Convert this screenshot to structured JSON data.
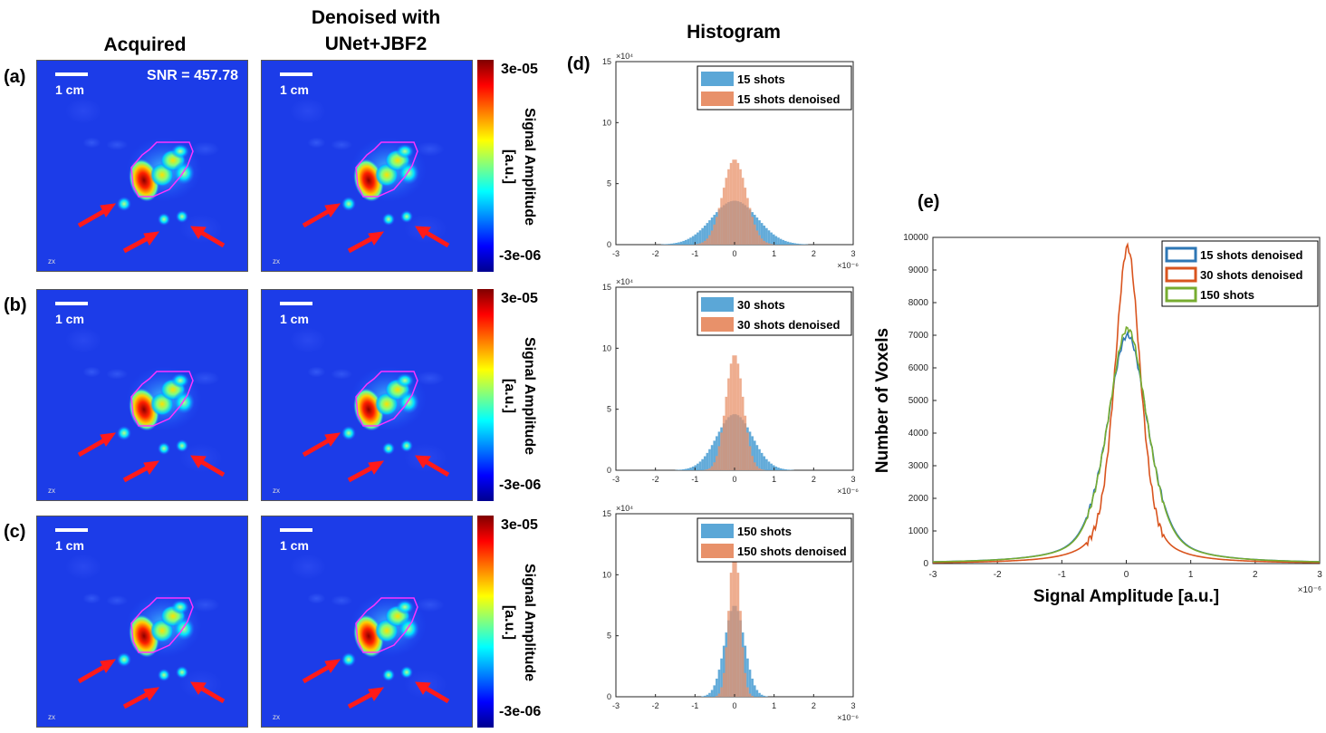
{
  "titles": {
    "acquired": "Acquired",
    "denoised_line1": "Denoised with",
    "denoised_line2": "UNet+JBF2",
    "histogram": "Histogram"
  },
  "panel_labels": {
    "a": "(a)",
    "b": "(b)",
    "c": "(c)",
    "d": "(d)",
    "e": "(e)"
  },
  "image_panels": {
    "scale_bar": "1 cm",
    "snr_text": "SNR = 457.78",
    "view_label": "zx",
    "colorbar": {
      "max_label": "3e-05",
      "min_label": "-3e-06",
      "title_line1": "Signal Amplitude",
      "title_line2": "[a.u.]"
    }
  },
  "colors": {
    "acquired": "#5BA7D7",
    "denoised": "#E8916A",
    "line_15_denoised": "#2E77B5",
    "line_30_denoised": "#D9541E",
    "line_150": "#77AC30",
    "roi_outline": "#ff33ff",
    "arrow": "#ff1a1a"
  },
  "chart_data": [
    {
      "type": "bar",
      "subtype": "histogram",
      "exponent_y": "×10⁴",
      "exponent_x": "×10⁻⁶",
      "x_ticks": [
        "-3",
        "-2",
        "-1",
        "0",
        "1",
        "2",
        "3"
      ],
      "y_ticks": [
        "0",
        "5",
        "10",
        "15"
      ],
      "xlim": [
        -3,
        3
      ],
      "ylim": [
        0,
        15
      ],
      "series": [
        {
          "name": "15 shots",
          "sigma": 0.58,
          "peak": 3.6
        },
        {
          "name": "15 shots denoised",
          "sigma": 0.3,
          "peak": 7.0
        }
      ]
    },
    {
      "type": "bar",
      "subtype": "histogram",
      "exponent_y": "×10⁴",
      "exponent_x": "×10⁻⁶",
      "x_ticks": [
        "-3",
        "-2",
        "-1",
        "0",
        "1",
        "2",
        "3"
      ],
      "y_ticks": [
        "0",
        "5",
        "10",
        "15"
      ],
      "xlim": [
        -3,
        3
      ],
      "ylim": [
        0,
        15
      ],
      "series": [
        {
          "name": "30 shots",
          "sigma": 0.45,
          "peak": 4.6
        },
        {
          "name": "30 shots denoised",
          "sigma": 0.22,
          "peak": 9.5
        }
      ]
    },
    {
      "type": "bar",
      "subtype": "histogram",
      "exponent_y": "×10⁴",
      "exponent_x": "×10⁻⁶",
      "x_ticks": [
        "-3",
        "-2",
        "-1",
        "0",
        "1",
        "2",
        "3"
      ],
      "y_ticks": [
        "0",
        "5",
        "10",
        "15"
      ],
      "xlim": [
        -3,
        3
      ],
      "ylim": [
        0,
        15
      ],
      "series": [
        {
          "name": "150 shots",
          "sigma": 0.25,
          "peak": 7.5
        },
        {
          "name": "150 shots denoised",
          "sigma": 0.14,
          "peak": 12.5
        }
      ]
    },
    {
      "type": "line",
      "xlabel": "Signal Amplitude [a.u.]",
      "ylabel": "Number of Voxels",
      "exponent_x": "×10⁻⁶",
      "x_ticks": [
        "-3",
        "-2",
        "-1",
        "0",
        "1",
        "2",
        "3"
      ],
      "y_ticks": [
        "0",
        "1000",
        "2000",
        "3000",
        "4000",
        "5000",
        "6000",
        "7000",
        "8000",
        "9000",
        "10000"
      ],
      "xlim": [
        -3,
        3
      ],
      "ylim": [
        0,
        10000
      ],
      "series": [
        {
          "name": "15 shots denoised",
          "peak": 7000,
          "hwhm": 0.38
        },
        {
          "name": "30 shots denoised",
          "peak": 9700,
          "hwhm": 0.24
        },
        {
          "name": "150 shots",
          "peak": 7200,
          "hwhm": 0.37
        }
      ]
    }
  ]
}
